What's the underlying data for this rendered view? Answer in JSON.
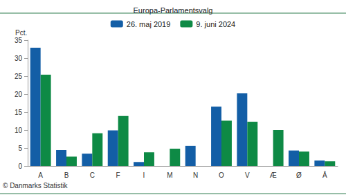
{
  "chart_data": {
    "type": "bar",
    "title": "Europa-Parlamentsvalg",
    "ylabel": "Pct.",
    "source": "© Danmarks Statistik",
    "categories": [
      "A",
      "B",
      "C",
      "F",
      "I",
      "M",
      "N",
      "O",
      "V",
      "Æ",
      "Ø",
      "Å"
    ],
    "series": [
      {
        "name": "26. maj 2019",
        "color": "#135ea6",
        "values": [
          32.9,
          4.4,
          3.4,
          9.9,
          1.1,
          null,
          5.6,
          16.5,
          20.2,
          null,
          4.3,
          1.5
        ]
      },
      {
        "name": "9. juni 2024",
        "color": "#0e8a45",
        "values": [
          25.4,
          2.6,
          9.1,
          13.9,
          3.8,
          4.8,
          null,
          12.6,
          12.3,
          10.0,
          4.0,
          1.3
        ]
      }
    ],
    "ylim": [
      0,
      35
    ],
    "yticks": [
      0,
      5,
      10,
      15,
      20,
      25,
      30,
      35
    ],
    "grid": false,
    "legend": "top"
  }
}
